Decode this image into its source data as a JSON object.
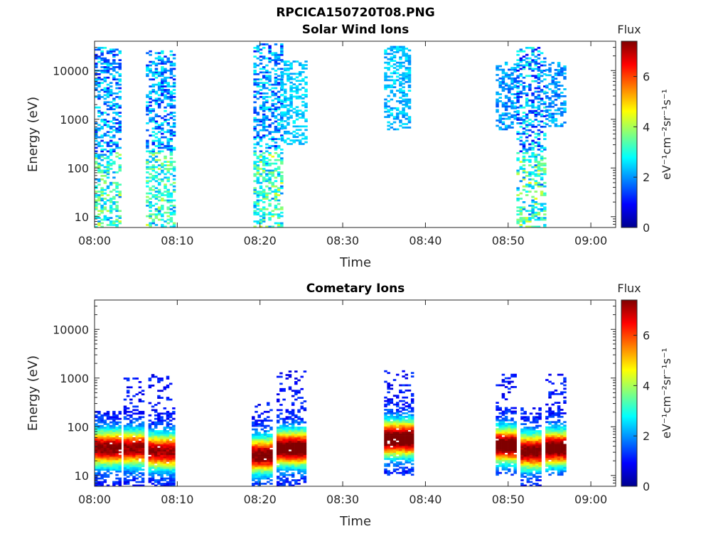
{
  "title": "RPCICA150720T08.PNG",
  "colormap": [
    "#00008f",
    "#0000ff",
    "#0080ff",
    "#00ffff",
    "#80ff80",
    "#ffff00",
    "#ff8000",
    "#ff0000",
    "#800000"
  ],
  "chart_data": [
    {
      "type": "heatmap",
      "title": "Solar Wind Ions",
      "xlabel": "Time",
      "ylabel": "Energy (eV)",
      "x_ticks": [
        "08:00",
        "08:10",
        "08:20",
        "08:30",
        "08:40",
        "08:50",
        "09:00"
      ],
      "x_range_minutes": [
        0,
        63
      ],
      "y_scale": "log",
      "y_range": [
        6,
        40000
      ],
      "y_ticks": [
        10,
        100,
        1000,
        10000
      ],
      "y_tick_labels": [
        "10",
        "100",
        "1000",
        "10000"
      ],
      "colorbar": {
        "title": "Flux",
        "unit": "eV⁻¹cm⁻²sr⁻¹s⁻¹",
        "ticks": [
          0,
          2,
          4,
          6
        ],
        "range": [
          0,
          7.4
        ]
      },
      "regions": [
        {
          "t_minutes": [
            0,
            3.2
          ],
          "energy_eV": [
            6,
            30000
          ],
          "flux": [
            1,
            3
          ]
        },
        {
          "t_minutes": [
            6.2,
            9.5
          ],
          "energy_eV": [
            6,
            25000
          ],
          "flux": [
            1,
            3
          ]
        },
        {
          "t_minutes": [
            19.2,
            22.5
          ],
          "energy_eV": [
            6,
            35000
          ],
          "flux": [
            1,
            3
          ]
        },
        {
          "t_minutes": [
            22.5,
            25.5
          ],
          "energy_eV": [
            300,
            15000
          ],
          "flux": [
            2,
            2.8
          ]
        },
        {
          "t_minutes": [
            35,
            38
          ],
          "energy_eV": [
            600,
            30000
          ],
          "flux": [
            1.8,
            2.8
          ]
        },
        {
          "t_minutes": [
            48.5,
            51
          ],
          "energy_eV": [
            600,
            15000
          ],
          "flux": [
            1.5,
            2.6
          ]
        },
        {
          "t_minutes": [
            51,
            54.5
          ],
          "energy_eV": [
            6,
            30000
          ],
          "flux": [
            0.8,
            3.2
          ]
        },
        {
          "t_minutes": [
            54.5,
            57
          ],
          "energy_eV": [
            700,
            15000
          ],
          "flux": [
            1.5,
            2.6
          ]
        }
      ]
    },
    {
      "type": "heatmap",
      "title": "Cometary Ions",
      "xlabel": "Time",
      "ylabel": "Energy (eV)",
      "x_ticks": [
        "08:00",
        "08:10",
        "08:20",
        "08:30",
        "08:40",
        "08:50",
        "09:00"
      ],
      "x_range_minutes": [
        0,
        63
      ],
      "y_scale": "log",
      "y_range": [
        6,
        40000
      ],
      "y_ticks": [
        10,
        100,
        1000,
        10000
      ],
      "y_tick_labels": [
        "10",
        "100",
        "1000",
        "10000"
      ],
      "colorbar": {
        "title": "Flux",
        "unit": "eV⁻¹cm⁻²sr⁻¹s⁻¹",
        "ticks": [
          0,
          2,
          4,
          6
        ],
        "range": [
          0,
          7.4
        ]
      },
      "regions": [
        {
          "t_minutes": [
            0,
            3
          ],
          "energy_eV": [
            6,
            200
          ],
          "peak_eV": 35,
          "peak_flux": 6.5
        },
        {
          "t_minutes": [
            3.5,
            6
          ],
          "energy_eV": [
            6,
            1000
          ],
          "peak_eV": 35,
          "peak_flux": 6.3
        },
        {
          "t_minutes": [
            6.5,
            9.5
          ],
          "energy_eV": [
            6,
            1200
          ],
          "peak_eV": 30,
          "peak_flux": 6.2
        },
        {
          "t_minutes": [
            19,
            21.5
          ],
          "energy_eV": [
            6,
            300
          ],
          "peak_eV": 25,
          "peak_flux": 6.6
        },
        {
          "t_minutes": [
            22,
            25.5
          ],
          "energy_eV": [
            6,
            1400
          ],
          "peak_eV": 35,
          "peak_flux": 7
        },
        {
          "t_minutes": [
            35,
            38.5
          ],
          "energy_eV": [
            10,
            1400
          ],
          "peak_eV": 55,
          "peak_flux": 7.2
        },
        {
          "t_minutes": [
            48.5,
            51
          ],
          "energy_eV": [
            10,
            1200
          ],
          "peak_eV": 40,
          "peak_flux": 7
        },
        {
          "t_minutes": [
            51.5,
            54
          ],
          "energy_eV": [
            6,
            250
          ],
          "peak_eV": 30,
          "peak_flux": 6.6
        },
        {
          "t_minutes": [
            54.5,
            57
          ],
          "energy_eV": [
            10,
            1200
          ],
          "peak_eV": 35,
          "peak_flux": 6.9
        }
      ]
    }
  ]
}
